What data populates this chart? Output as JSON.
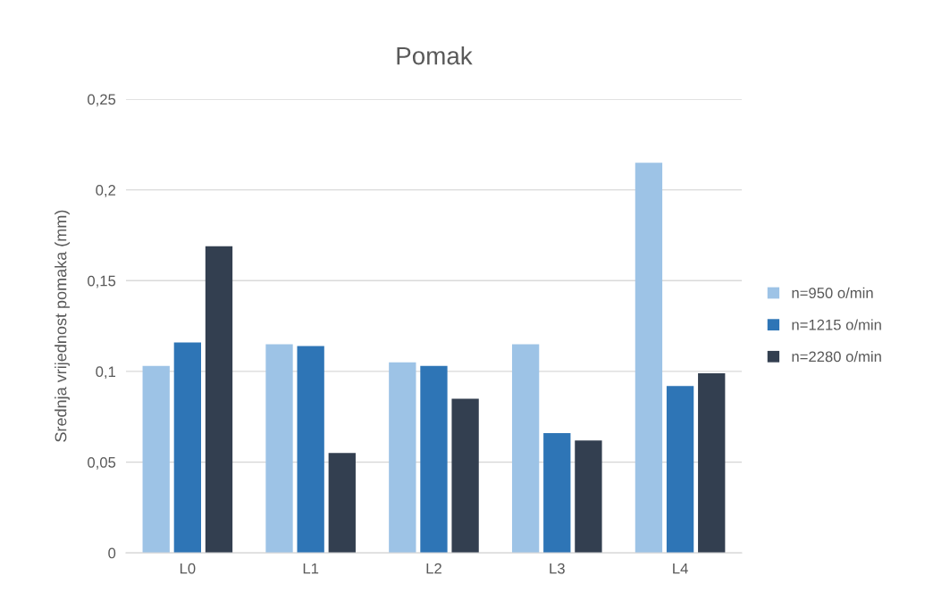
{
  "chart_data": {
    "type": "bar",
    "title": "Pomak",
    "ylabel": "Srednja vrijednost pomaka (mm)",
    "categories": [
      "L0",
      "L1",
      "L2",
      "L3",
      "L4"
    ],
    "series": [
      {
        "name": "n=950 o/min",
        "color": "#9dc3e6",
        "values": [
          0.103,
          0.115,
          0.105,
          0.115,
          0.215
        ]
      },
      {
        "name": "n=1215 o/min",
        "color": "#2e75b6",
        "values": [
          0.116,
          0.114,
          0.103,
          0.066,
          0.092
        ]
      },
      {
        "name": "n=2280 o/min",
        "color": "#333f50",
        "values": [
          0.169,
          0.055,
          0.085,
          0.062,
          0.099
        ]
      }
    ],
    "ylim": [
      0,
      0.25
    ],
    "yticks": [
      0,
      {
        "value": 0.05,
        "label": "0,05"
      },
      {
        "value": 0.1,
        "label": "0,1"
      },
      {
        "value": 0.15,
        "label": "0,15"
      },
      {
        "value": 0.2,
        "label": "0,2"
      },
      {
        "value": 0.25,
        "label": "0,25"
      }
    ],
    "grid": "y",
    "legend": "right"
  }
}
